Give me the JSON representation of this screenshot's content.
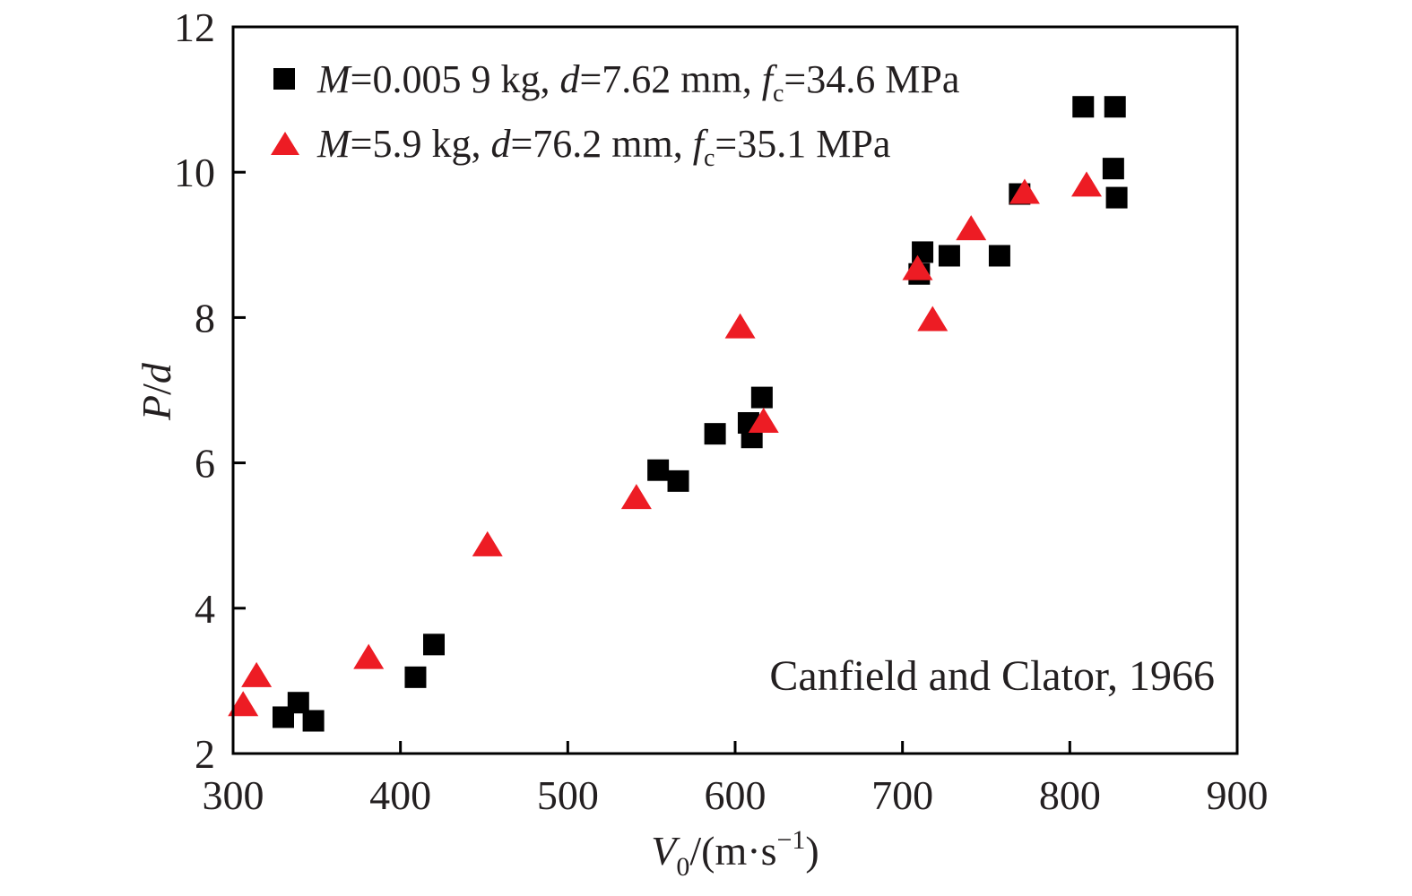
{
  "chart_data": {
    "type": "scatter",
    "title": "",
    "xlim": [
      300,
      900
    ],
    "ylim": [
      2,
      12
    ],
    "x_ticks": [
      300,
      400,
      500,
      600,
      700,
      800,
      900
    ],
    "y_ticks": [
      2,
      4,
      6,
      8,
      10,
      12
    ],
    "x_tick_labels": [
      "300",
      "400",
      "500",
      "600",
      "700",
      "800",
      "900"
    ],
    "y_tick_labels": [
      "2",
      "4",
      "6",
      "8",
      "10",
      "12"
    ],
    "xlabel": {
      "symbol": "V",
      "subscript": "0",
      "unit": "/(m·s",
      "exponent": "−1",
      "close": ")"
    },
    "ylabel": {
      "P": "P",
      "slash": "/",
      "d": "d"
    },
    "grid": false,
    "legend_position": "top-left",
    "annotation": "Canfield and Clator, 1966",
    "series": [
      {
        "marker": "square",
        "color": "#000000",
        "legend": {
          "M": "M",
          "m_val": "=0.005 9 kg, ",
          "d": "d",
          "d_val": "=7.62 mm, ",
          "f": "f",
          "sub": "c",
          "f_val": "=34.6 MPa"
        },
        "points": [
          [
            330,
            2.5
          ],
          [
            339,
            2.7
          ],
          [
            348,
            2.45
          ],
          [
            409,
            3.05
          ],
          [
            420,
            3.5
          ],
          [
            554,
            5.9
          ],
          [
            566,
            5.75
          ],
          [
            588,
            6.4
          ],
          [
            608,
            6.55
          ],
          [
            610,
            6.35
          ],
          [
            616,
            6.9
          ],
          [
            710,
            8.6
          ],
          [
            712,
            8.9
          ],
          [
            728,
            8.85
          ],
          [
            758,
            8.85
          ],
          [
            770,
            9.7
          ],
          [
            808,
            10.9
          ],
          [
            826,
            10.05
          ],
          [
            827,
            10.9
          ],
          [
            828,
            9.65
          ]
        ]
      },
      {
        "marker": "triangle",
        "color": "#ed1c24",
        "legend": {
          "M": "M",
          "m_val": "=5.9 kg, ",
          "d": "d",
          "d_val": "=76.2 mm, ",
          "f": "f",
          "sub": "c",
          "f_val": "=35.1 MPa"
        },
        "points": [
          [
            306,
            2.65
          ],
          [
            314,
            3.05
          ],
          [
            381,
            3.3
          ],
          [
            452,
            4.85
          ],
          [
            541,
            5.5
          ],
          [
            603,
            7.85
          ],
          [
            617,
            6.55
          ],
          [
            709,
            8.65
          ],
          [
            718,
            7.95
          ],
          [
            741,
            9.2
          ],
          [
            773,
            9.7
          ],
          [
            810,
            9.8
          ]
        ]
      }
    ]
  }
}
